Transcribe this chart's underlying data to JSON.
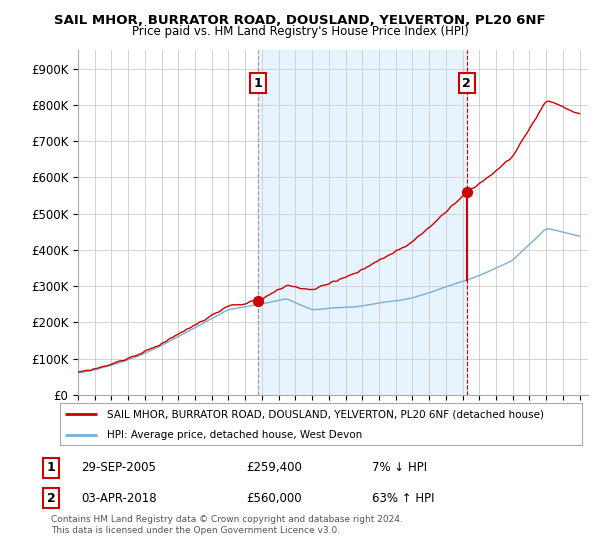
{
  "title": "SAIL MHOR, BURRATOR ROAD, DOUSLAND, YELVERTON, PL20 6NF",
  "subtitle": "Price paid vs. HM Land Registry's House Price Index (HPI)",
  "legend_line1": "SAIL MHOR, BURRATOR ROAD, DOUSLAND, YELVERTON, PL20 6NF (detached house)",
  "legend_line2": "HPI: Average price, detached house, West Devon",
  "annotation1_label": "1",
  "annotation1_date": "29-SEP-2005",
  "annotation1_price": "£259,400",
  "annotation1_hpi": "7% ↓ HPI",
  "annotation2_label": "2",
  "annotation2_date": "03-APR-2018",
  "annotation2_price": "£560,000",
  "annotation2_hpi": "63% ↑ HPI",
  "footer": "Contains HM Land Registry data © Crown copyright and database right 2024.\nThis data is licensed under the Open Government Licence v3.0.",
  "sale1_x": 2005.75,
  "sale1_y": 259400,
  "sale2_x": 2018.25,
  "sale2_y": 560000,
  "vline1_x": 2005.75,
  "vline2_x": 2018.25,
  "price_line_color": "#cc0000",
  "hpi_line_color": "#7ab0d4",
  "vline1_color": "#aaaaaa",
  "vline2_color": "#cc0000",
  "dot_color": "#cc0000",
  "shade_color": "#ddeeff",
  "background_color": "#ffffff",
  "grid_color": "#cccccc",
  "ylim_min": 0,
  "ylim_max": 950000,
  "xlim_min": 1995,
  "xlim_max": 2025.5,
  "yticks": [
    0,
    100000,
    200000,
    300000,
    400000,
    500000,
    600000,
    700000,
    800000,
    900000
  ],
  "ytick_labels": [
    "£0",
    "£100K",
    "£200K",
    "£300K",
    "£400K",
    "£500K",
    "£600K",
    "£700K",
    "£800K",
    "£900K"
  ]
}
